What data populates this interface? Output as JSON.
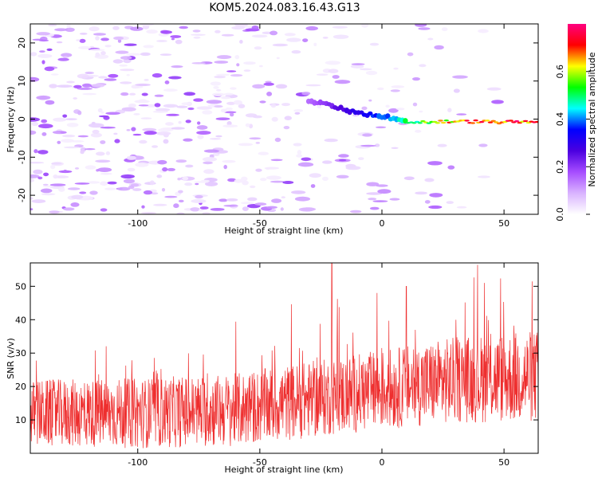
{
  "figure_title": "KOM5.2024.083.16.43.G13",
  "colors": {
    "snr_line": "#ee2e2e",
    "colormap": [
      "#ffffff",
      "#d9b3ff",
      "#a64dff",
      "#4b00e0",
      "#0000ff",
      "#00ffff",
      "#00ff00",
      "#ffff00",
      "#ff0000",
      "#ff0080"
    ]
  },
  "chart_data": [
    {
      "type": "heatmap",
      "title": "",
      "xlabel": "Height of straight line (km)",
      "ylabel": "Frequency (Hz)",
      "xlim": [
        -144,
        64
      ],
      "ylim": [
        -25,
        25
      ],
      "xticks": [
        -100,
        -50,
        0,
        50
      ],
      "yticks": [
        -20,
        -10,
        0,
        10,
        20
      ],
      "colorbar": {
        "label": "Normalized spectral amplitude",
        "range": [
          0,
          0.8
        ],
        "ticks": [
          "0.0",
          "0.2",
          "0.4",
          "0.6"
        ]
      },
      "features": {
        "dominant_band": {
          "description_points": [
            [
              -30,
              4.5
            ],
            [
              -20,
              3.5
            ],
            [
              -10,
              1.5
            ],
            [
              0,
              0.8
            ],
            [
              10,
              -0.8
            ],
            [
              20,
              -0.8
            ],
            [
              30,
              -0.6
            ],
            [
              50,
              -0.8
            ],
            [
              64,
              -0.8
            ]
          ],
          "amplitude_range": [
            0.15,
            0.8
          ]
        },
        "background_noise_amplitude": [
          0.02,
          0.2
        ]
      }
    },
    {
      "type": "line",
      "title": "",
      "xlabel": "Height of straight line (km)",
      "ylabel": "SNR (v/v)",
      "xlim": [
        -144,
        64
      ],
      "ylim": [
        0,
        57
      ],
      "xticks": [
        -100,
        -50,
        0,
        50
      ],
      "yticks": [
        10,
        20,
        30,
        40,
        50
      ],
      "series": [
        {
          "name": "",
          "trend": [
            [
              -144,
              12
            ],
            [
              -100,
              12
            ],
            [
              -60,
              13
            ],
            [
              -30,
              16
            ],
            [
              0,
              19
            ],
            [
              30,
              22
            ],
            [
              64,
              23
            ]
          ],
          "spread": [
            [
              -144,
              10
            ],
            [
              -60,
              11
            ],
            [
              0,
              12
            ],
            [
              64,
              14
            ]
          ],
          "notable_peaks": [
            [
              -20.5,
              57
            ],
            [
              42,
              51
            ],
            [
              10,
              50
            ],
            [
              -2,
              48
            ]
          ]
        }
      ]
    }
  ]
}
